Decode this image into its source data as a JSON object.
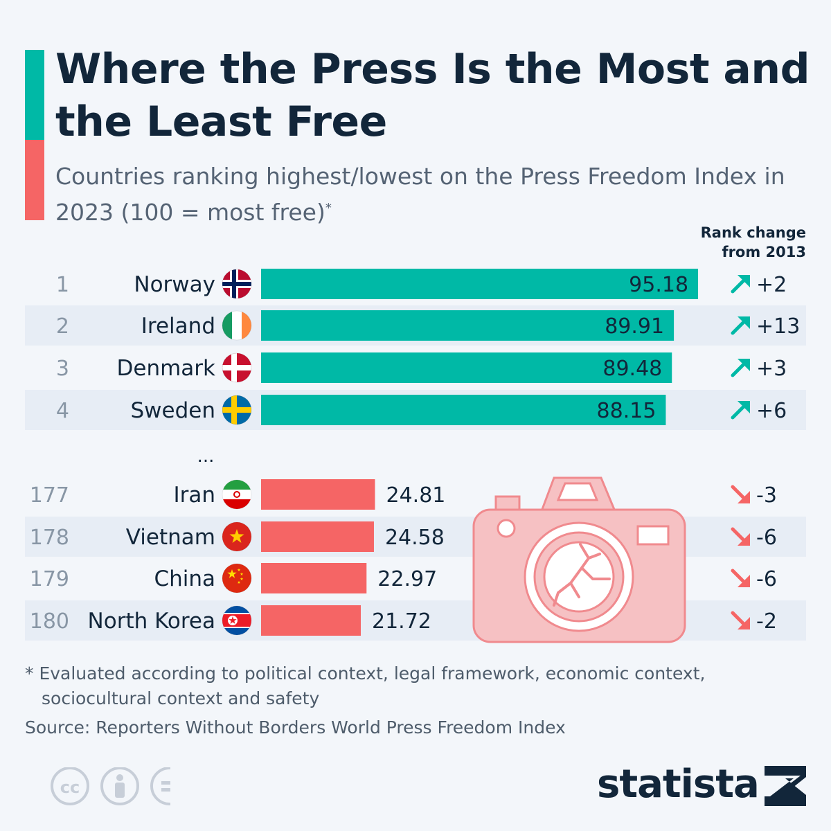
{
  "title": "Where the Press Is the Most and the Least Free",
  "subtitle": "Countries ranking highest/lowest on the Press Freedom Index in 2023 (100 = most free)",
  "subtitle_marker": "*",
  "rank_change_header": [
    "Rank change",
    "from 2013"
  ],
  "ellipsis": "...",
  "footnote": [
    "* Evaluated according to political context, legal framework, economic context,",
    "sociocultural context and safety"
  ],
  "source": "Source: Reporters Without Borders World Press Freedom Index",
  "brand": "statista",
  "colors": {
    "top": "#00b9a6",
    "bottom": "#f56565",
    "camera": "#f6c1c3",
    "camera_stroke": "#f08a8e",
    "row_band": "#e7edf5"
  },
  "icons": [
    "creative-commons-icon",
    "attribution-icon",
    "no-derivatives-icon",
    "camera-icon",
    "arrow-up-right-icon",
    "arrow-down-right-icon"
  ],
  "chart_data": {
    "type": "bar",
    "orientation": "horizontal",
    "xlim": [
      0,
      100
    ],
    "rows": [
      {
        "rank": "1",
        "country": "Norway",
        "value": 95.18,
        "change": "+2",
        "group": "top",
        "flag": "norway"
      },
      {
        "rank": "2",
        "country": "Ireland",
        "value": 89.91,
        "change": "+13",
        "group": "top",
        "flag": "ireland"
      },
      {
        "rank": "3",
        "country": "Denmark",
        "value": 89.48,
        "change": "+3",
        "group": "top",
        "flag": "denmark"
      },
      {
        "rank": "4",
        "country": "Sweden",
        "value": 88.15,
        "change": "+6",
        "group": "top",
        "flag": "sweden"
      },
      {
        "rank": "177",
        "country": "Iran",
        "value": 24.81,
        "change": "-3",
        "group": "bottom",
        "flag": "iran"
      },
      {
        "rank": "178",
        "country": "Vietnam",
        "value": 24.58,
        "change": "-6",
        "group": "bottom",
        "flag": "vietnam"
      },
      {
        "rank": "179",
        "country": "China",
        "value": 22.97,
        "change": "-6",
        "group": "bottom",
        "flag": "china"
      },
      {
        "rank": "180",
        "country": "North Korea",
        "value": 21.72,
        "change": "-2",
        "group": "bottom",
        "flag": "north-korea"
      }
    ]
  }
}
